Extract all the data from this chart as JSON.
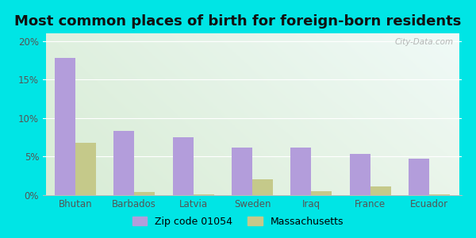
{
  "title": "Most common places of birth for foreign-born residents",
  "categories": [
    "Bhutan",
    "Barbados",
    "Latvia",
    "Sweden",
    "Iraq",
    "France",
    "Ecuador"
  ],
  "zip_values": [
    17.8,
    8.3,
    7.5,
    6.2,
    6.2,
    5.4,
    4.7
  ],
  "mass_values": [
    6.8,
    0.4,
    0.1,
    2.1,
    0.5,
    1.1,
    0.1
  ],
  "zip_color": "#b39ddb",
  "mass_color": "#c5c98a",
  "background_outer": "#00e5e5",
  "background_inner_tl": "#dff0df",
  "background_inner_tr": "#f0faf8",
  "background_inner_bl": "#d8ecd5",
  "background_inner_br": "#eaf5ea",
  "ylim": [
    0,
    21
  ],
  "yticks": [
    0,
    5,
    10,
    15,
    20
  ],
  "ytick_labels": [
    "0%",
    "5%",
    "10%",
    "15%",
    "20%"
  ],
  "legend_zip_label": "Zip code 01054",
  "legend_mass_label": "Massachusetts",
  "title_fontsize": 13,
  "tick_fontsize": 8.5,
  "legend_fontsize": 9,
  "bar_width": 0.35,
  "watermark_text": "City-Data.com"
}
